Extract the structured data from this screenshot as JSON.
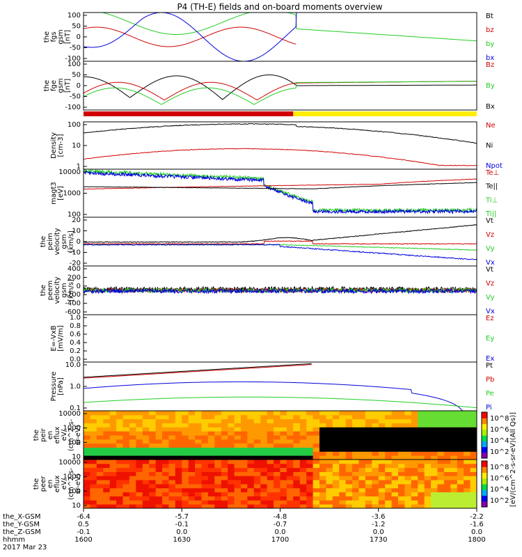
{
  "title": "P4 (TH-E) fields and on-board moments overview",
  "colors": {
    "black": "#000000",
    "red": "#d00000",
    "green": "#22cc22",
    "blue": "#0000dd",
    "yellow": "#ffee00"
  },
  "chart_data": {
    "type": "line",
    "xlim": [
      0,
      120
    ],
    "panels": [
      {
        "id": "fgs",
        "ylabel": [
          "the",
          "fgs",
          "gsm",
          "[nT]"
        ],
        "yscale": "linear",
        "ylim": [
          -100,
          100
        ],
        "yticks": [
          "100",
          "50",
          "0",
          "-50",
          "-100"
        ],
        "legend": [
          {
            "name": "Bt",
            "color": "black"
          },
          {
            "name": "bz",
            "color": "red"
          },
          {
            "name": "by",
            "color": "green"
          },
          {
            "name": "bx",
            "color": "blue"
          }
        ]
      },
      {
        "id": "fge",
        "ylabel": [
          "the",
          "fge",
          "gsm",
          "[nT]"
        ],
        "yscale": "linear",
        "ylim": [
          -120,
          100
        ],
        "yticks": [
          "100",
          "50",
          "0",
          "-50",
          "-100"
        ],
        "legend": [
          {
            "name": "Bz",
            "color": "red"
          },
          {
            "name": "By",
            "color": "green"
          },
          {
            "name": "Bx",
            "color": "black"
          }
        ]
      },
      {
        "id": "density",
        "ylabel": [
          "Density",
          "[cm-3]"
        ],
        "yscale": "log",
        "ylim": [
          0.3,
          200
        ],
        "yticks": [
          "100",
          "10",
          "1"
        ],
        "legend": [
          {
            "name": "Ne",
            "color": "red"
          },
          {
            "name": "Ni",
            "color": "black"
          },
          {
            "name": "Npot",
            "color": "blue"
          }
        ]
      },
      {
        "id": "temp",
        "ylabel": [
          "magt3",
          "[eV]"
        ],
        "yscale": "log",
        "ylim": [
          30,
          10000
        ],
        "yticks": [
          "10000",
          "1000",
          "100"
        ],
        "legend": [
          {
            "name": "Te⊥",
            "color": "red"
          },
          {
            "name": "Te||",
            "color": "black"
          },
          {
            "name": "Ti⊥",
            "color": "green"
          },
          {
            "name": "Ti||",
            "color": "green"
          }
        ]
      },
      {
        "id": "peimvel",
        "ylabel": [
          "the",
          "peim",
          "velocity",
          "gsm",
          "[km/s]"
        ],
        "yscale": "linear",
        "ylim": [
          -25,
          30
        ],
        "yticks": [
          "20",
          "10",
          "0",
          "-10",
          "-20"
        ],
        "legend": [
          {
            "name": "Vt",
            "color": "black"
          },
          {
            "name": "Vz",
            "color": "red"
          },
          {
            "name": "Vy",
            "color": "green"
          },
          {
            "name": "Vx",
            "color": "blue"
          }
        ]
      },
      {
        "id": "peemvel",
        "ylabel": [
          "the",
          "peem",
          "velocity",
          "gsm",
          "[km/s]"
        ],
        "yscale": "linear",
        "ylim": [
          -600,
          600
        ],
        "yticks": [
          "400",
          "200",
          "0",
          "-200",
          "-400",
          "-600"
        ],
        "legend": [
          {
            "name": "Vt",
            "color": "black"
          },
          {
            "name": "Vz",
            "color": "red"
          },
          {
            "name": "Vy",
            "color": "green"
          },
          {
            "name": "Vx",
            "color": "blue"
          }
        ]
      },
      {
        "id": "efield",
        "ylabel": [
          "E=-VxB",
          "[mV/m]"
        ],
        "yscale": "linear",
        "ylim": [
          0,
          1
        ],
        "yticks": [
          "1.0",
          "0.8",
          "0.6",
          "0.4",
          "0.2",
          "0.0"
        ],
        "legend": [
          {
            "name": "Ez",
            "color": "red"
          },
          {
            "name": "Ey",
            "color": "green"
          },
          {
            "name": "Ex",
            "color": "blue"
          }
        ]
      },
      {
        "id": "pressure",
        "ylabel": [
          "Pressure",
          "[nPa]"
        ],
        "yscale": "log",
        "ylim": [
          0.05,
          80
        ],
        "yticks": [
          "10.0",
          "1.0",
          "0.1"
        ],
        "legend": [
          {
            "name": "Pt",
            "color": "black"
          },
          {
            "name": "Pb",
            "color": "red"
          },
          {
            "name": "Pe",
            "color": "green"
          },
          {
            "name": "Pi",
            "color": "blue"
          }
        ]
      },
      {
        "id": "peir",
        "ylabel": [
          "the",
          "peir",
          "en",
          "eflux",
          "eV/",
          "(cm^2-s-",
          "sr-eV)"
        ],
        "yscale": "log",
        "yticks": [
          "10000",
          "1000",
          "100",
          "10"
        ],
        "type": "heatmap"
      },
      {
        "id": "peer",
        "ylabel": [
          "the",
          "peer",
          "en",
          "eflux",
          "eV/",
          "(cm^2-s-",
          "sr-eV)"
        ],
        "yscale": "log",
        "yticks": [
          "10000",
          "1000",
          "100",
          "10"
        ],
        "type": "heatmap"
      }
    ],
    "colorbar": {
      "label": "[eV/(cm^2-s-sr-eV)(All Qs)]",
      "ticks": [
        "10^8",
        "10^6",
        "10^4",
        "10^2"
      ]
    },
    "x_ticks": [
      {
        "x": "-6.4",
        "y": "0.5",
        "z": "-0.1",
        "hhmm": "1600"
      },
      {
        "x": "-5.7",
        "y": "-0.1",
        "z": "0.0",
        "hhmm": "1630"
      },
      {
        "x": "-4.8",
        "y": "-0.7",
        "z": "0.0",
        "hhmm": "1700"
      },
      {
        "x": "-3.6",
        "y": "-1.2",
        "z": "0.0",
        "hhmm": "1730"
      },
      {
        "x": "-2.2",
        "y": "-1.6",
        "z": "0.0",
        "hhmm": "1800"
      }
    ],
    "row_labels": [
      "the_X-GSM",
      "the_Y-GSM",
      "the_Z-GSM",
      "hhmm"
    ],
    "date": "2017 Mar 23"
  }
}
